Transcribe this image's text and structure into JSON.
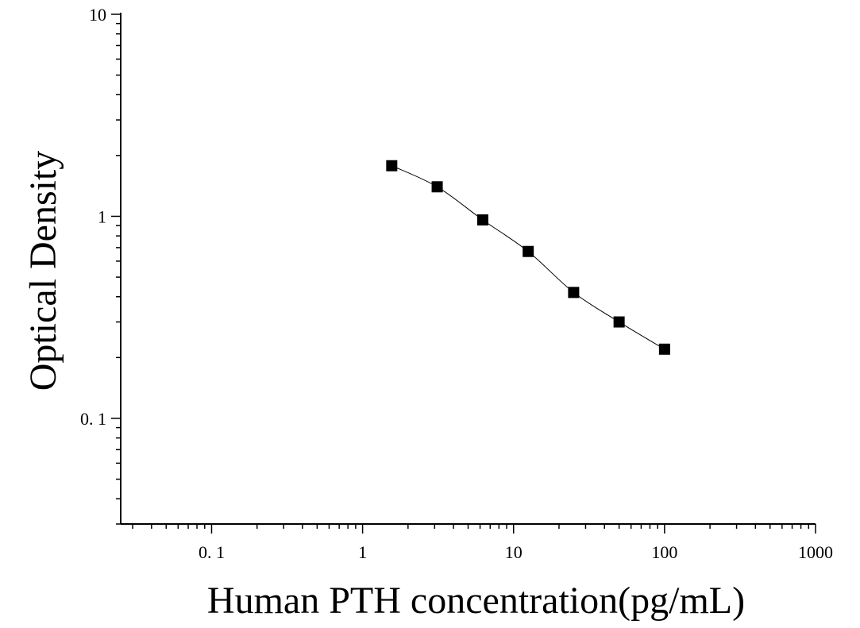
{
  "chart_data": {
    "type": "scatter",
    "xlabel": "Human PTH concentration(pg/mL)",
    "ylabel": "Optical Density",
    "x_scale": "log",
    "y_scale": "log",
    "xlim": [
      0.025,
      1000
    ],
    "ylim": [
      0.03,
      10
    ],
    "x_ticks": [
      {
        "value": 0.1,
        "label": "0. 1"
      },
      {
        "value": 1,
        "label": "1"
      },
      {
        "value": 10,
        "label": "10"
      },
      {
        "value": 100,
        "label": "100"
      },
      {
        "value": 1000,
        "label": "1000"
      }
    ],
    "y_ticks": [
      {
        "value": 0.1,
        "label": "0. 1"
      },
      {
        "value": 1,
        "label": "1"
      },
      {
        "value": 10,
        "label": "10"
      }
    ],
    "grid": false,
    "series": [
      {
        "marker": "square",
        "color": "#000000",
        "fit_curve": true,
        "x": [
          1.56,
          3.12,
          6.25,
          12.5,
          25,
          50,
          100
        ],
        "y": [
          1.78,
          1.4,
          0.96,
          0.67,
          0.42,
          0.3,
          0.22
        ]
      }
    ]
  }
}
